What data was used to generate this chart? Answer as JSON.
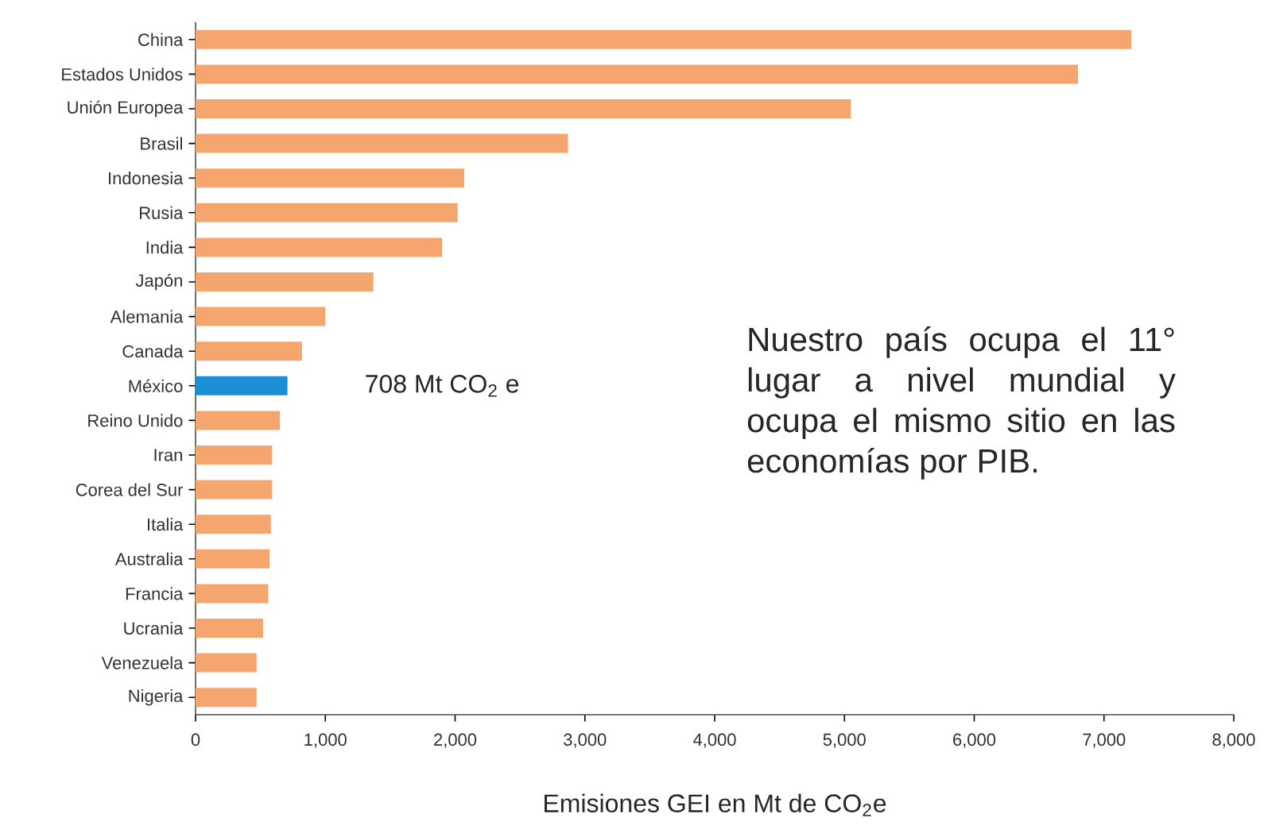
{
  "chart_data": {
    "type": "bar",
    "orientation": "horizontal",
    "categories": [
      "China",
      "Estados Unidos",
      "Unión Europea",
      "Brasil",
      "Indonesia",
      "Rusia",
      "India",
      "Japón",
      "Alemania",
      "Canada",
      "México",
      "Reino Unido",
      "Iran",
      "Corea del Sur",
      "Italia",
      "Australia",
      "Francia",
      "Ucrania",
      "Venezuela",
      "Nigeria"
    ],
    "values": [
      7210,
      6800,
      5050,
      2870,
      2070,
      2020,
      1900,
      1370,
      1000,
      820,
      708,
      650,
      590,
      590,
      580,
      570,
      560,
      520,
      470,
      470
    ],
    "colors": [
      "#f5a66f",
      "#f5a66f",
      "#f5a66f",
      "#f5a66f",
      "#f5a66f",
      "#f5a66f",
      "#f5a66f",
      "#f5a66f",
      "#f5a66f",
      "#f5a66f",
      "#1b8fd6",
      "#f5a66f",
      "#f5a66f",
      "#f5a66f",
      "#f5a66f",
      "#f5a66f",
      "#f5a66f",
      "#f5a66f",
      "#f5a66f",
      "#f5a66f"
    ],
    "value_labels": [
      null,
      null,
      null,
      null,
      null,
      null,
      null,
      null,
      null,
      null,
      "708 Mt CO$_{2}$ e",
      null,
      null,
      null,
      null,
      null,
      null,
      null,
      null,
      null
    ],
    "xlim": [
      0,
      8000
    ],
    "xticks": [
      0,
      {
        "value": 1000,
        "label": "1,000"
      },
      {
        "value": 2000,
        "label": "2,000"
      },
      {
        "value": 3000,
        "label": "3,000"
      },
      {
        "value": 4000,
        "label": "4,000"
      },
      {
        "value": 5000,
        "label": "5,000"
      },
      {
        "value": 6000,
        "label": "6,000"
      },
      {
        "value": 7000,
        "label": "7,000"
      },
      {
        "value": 8000,
        "label": "8,000"
      }
    ],
    "xlabel": "Emisiones GEI en Mt de CO$_{2}$e",
    "annotations": [
      "Nuestro país ocupa el 11° lugar a nivel mundial y ocupa el mismo sitio en las economías por PIB."
    ],
    "grid": false
  }
}
